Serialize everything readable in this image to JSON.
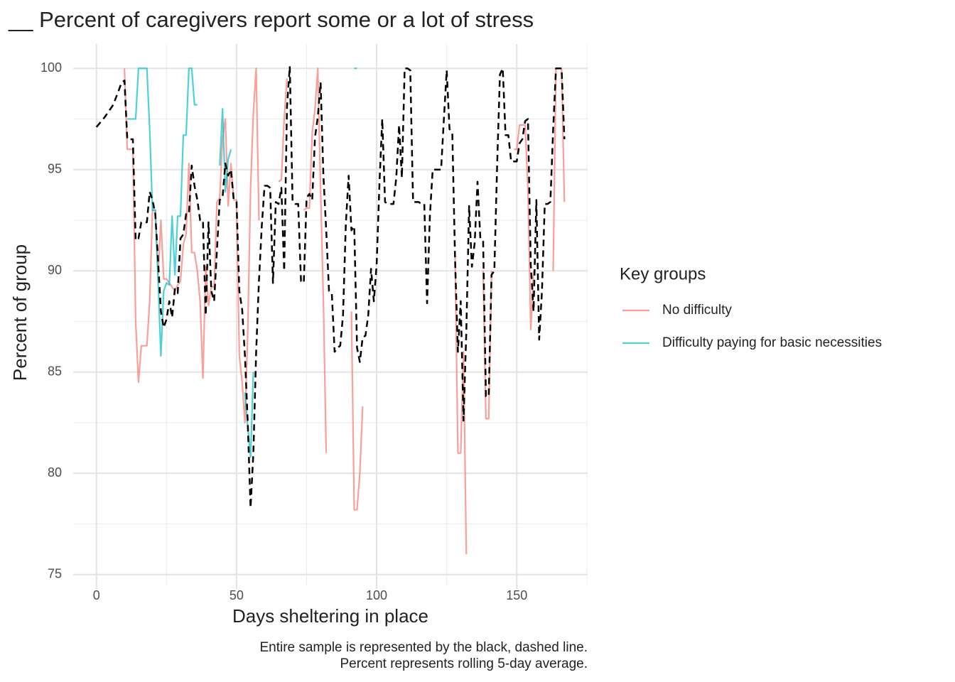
{
  "chart_data": {
    "type": "line",
    "title": "__ Percent of caregivers report some or a lot of stress",
    "x_label": "Days sheltering in place",
    "y_label": "Percent of group",
    "legend_title": "Key groups",
    "legend_position": "right",
    "caption": [
      "Entire sample is represented by the black, dashed line.",
      "Percent represents rolling 5-day average."
    ],
    "xlim": [
      -8.3,
      175.3
    ],
    "xticks": [
      0,
      50,
      100,
      150
    ],
    "ylim": [
      74.5,
      101.2
    ],
    "yticks": [
      75,
      80,
      85,
      90,
      95,
      100
    ],
    "grid": true,
    "series": [
      {
        "name": "No difficulty",
        "color": "#F8766D",
        "x": [
          10,
          11,
          13,
          14,
          15,
          16,
          18,
          19,
          20,
          21,
          22,
          23,
          24,
          25,
          26,
          27,
          28,
          29,
          30,
          31,
          32,
          33,
          34,
          35,
          36,
          37,
          38,
          39,
          40,
          41,
          42,
          43,
          44,
          45,
          46,
          47,
          48,
          49,
          50,
          51,
          52,
          53,
          54,
          55,
          56,
          57,
          58,
          64,
          65,
          66,
          67,
          68,
          69,
          73,
          74,
          75,
          76,
          77,
          78,
          79,
          80,
          81,
          82,
          90,
          91,
          92,
          93,
          94,
          95,
          127,
          128,
          129,
          130,
          131,
          132,
          137,
          138,
          139,
          140,
          141,
          148,
          149,
          150,
          151,
          152,
          153,
          154,
          155,
          156,
          162,
          163,
          164,
          165,
          166,
          167
        ],
        "values": [
          100,
          96,
          96,
          87.5,
          84.5,
          86.3,
          86.3,
          88.5,
          93,
          93,
          89.8,
          92.5,
          89.6,
          89.6,
          89.4,
          89.2,
          89,
          89.3,
          89.5,
          91.3,
          91.8,
          95.3,
          90.9,
          90.9,
          90,
          88.5,
          84.7,
          90.2,
          88.3,
          89.2,
          89.2,
          93.4,
          93.6,
          96.5,
          97.5,
          93.2,
          95.3,
          93.5,
          93.5,
          85.8,
          84.5,
          82.5,
          87,
          94,
          97.8,
          100,
          92.5,
          null,
          94.4,
          94.5,
          97.5,
          99.5,
          null,
          null,
          93,
          93.1,
          93.1,
          96.8,
          98,
          100,
          94,
          88.5,
          81,
          null,
          88,
          78.2,
          78.2,
          80,
          83.3,
          null,
          90.7,
          81,
          81,
          86,
          76,
          null,
          90,
          82.7,
          82.7,
          90,
          null,
          96,
          96,
          97.2,
          97.2,
          97.2,
          94,
          87.1,
          90,
          null,
          90,
          100,
          100,
          100,
          93.4
        ]
      },
      {
        "name": "Difficulty paying for basic necessities",
        "color": "#00BFC4",
        "x": [
          11,
          13,
          14,
          15,
          16,
          18,
          19,
          20,
          21,
          22,
          23,
          24,
          25,
          26,
          27,
          28,
          29,
          30,
          31,
          32,
          33,
          34,
          35,
          36,
          37,
          44,
          45,
          46,
          47,
          48,
          49,
          53,
          54,
          55,
          56,
          91,
          92,
          93
        ],
        "values": [
          97.5,
          97.5,
          97.5,
          100,
          100,
          100,
          97,
          93,
          93,
          89.5,
          85.8,
          89,
          89.4,
          89.3,
          92.7,
          89.8,
          92.7,
          92.7,
          96.7,
          96.7,
          100,
          100,
          98.2,
          98.2,
          null,
          95.2,
          98,
          93.9,
          95.5,
          96,
          null,
          84,
          82.3,
          80.8,
          85,
          null,
          100,
          100
        ]
      },
      {
        "color": "#000000",
        "dashed": true,
        "x": [
          0,
          3,
          6,
          9,
          10,
          11,
          13,
          14,
          15,
          16,
          18,
          19,
          20,
          21,
          22,
          23,
          24,
          25,
          26,
          27,
          28,
          29,
          30,
          31,
          32,
          33,
          34,
          35,
          36,
          37,
          38,
          39,
          40,
          41,
          42,
          44,
          45,
          46,
          47,
          48,
          49,
          50,
          51,
          52,
          53,
          54,
          55,
          56,
          57,
          58,
          59,
          60,
          61,
          62,
          63,
          64,
          65,
          66,
          67,
          68,
          69,
          70,
          71,
          72,
          73,
          74,
          75,
          76,
          77,
          78,
          79,
          80,
          81,
          82,
          83,
          84,
          85,
          86,
          87,
          88,
          89,
          90,
          91,
          92,
          93,
          94,
          95,
          96,
          97,
          98,
          99,
          100,
          101,
          102,
          103,
          104,
          105,
          106,
          107,
          108,
          109,
          110,
          111,
          112,
          113,
          114,
          115,
          116,
          117,
          118,
          119,
          120,
          121,
          122,
          123,
          124,
          125,
          126,
          127,
          128,
          129,
          130,
          131,
          132,
          133,
          134,
          135,
          136,
          137,
          138,
          139,
          140,
          141,
          142,
          143,
          144,
          145,
          146,
          147,
          148,
          149,
          150,
          151,
          152,
          153,
          154,
          155,
          156,
          157,
          158,
          159,
          160,
          161,
          162,
          163,
          164,
          165,
          166,
          167
        ],
        "values": [
          97.1,
          97.6,
          98.2,
          99.3,
          99.4,
          96.5,
          96.5,
          91.5,
          91.6,
          92.4,
          92.4,
          93.9,
          93.5,
          92.8,
          90.5,
          88,
          87.2,
          87.6,
          88.5,
          87.7,
          89.1,
          88.9,
          91.6,
          91.8,
          92.8,
          92.8,
          95.2,
          94.2,
          93.5,
          92.5,
          92.5,
          87.8,
          92.4,
          89,
          88.5,
          93.5,
          93.6,
          95.3,
          94.7,
          95,
          93.5,
          93.4,
          89,
          88.1,
          85.8,
          82.5,
          78.3,
          81,
          86,
          89.5,
          92.2,
          94.2,
          94.2,
          94.1,
          89.4,
          93.4,
          93.3,
          94.1,
          90,
          98.1,
          100.1,
          93.4,
          93.3,
          93.3,
          89.5,
          89.4,
          93.6,
          93.8,
          93.5,
          96.6,
          97.6,
          99.3,
          94.7,
          92,
          89,
          88.9,
          86,
          86.2,
          86.3,
          87.8,
          92.3,
          94.7,
          92,
          92.2,
          86.2,
          85.5,
          86.7,
          86.8,
          87.8,
          90.1,
          88.5,
          90.3,
          94.3,
          97.5,
          93.4,
          93.3,
          93.3,
          93.3,
          94.6,
          97.2,
          94.6,
          100,
          100,
          99.9,
          93.4,
          93.4,
          93.4,
          93.3,
          93.3,
          88.4,
          92.7,
          95,
          95,
          95,
          95,
          97.5,
          99.9,
          97,
          96.8,
          90.5,
          86,
          88.5,
          82.6,
          87,
          93.2,
          90.2,
          91.4,
          94.4,
          91.6,
          91.5,
          83.8,
          83.8,
          89.8,
          90,
          95.2,
          99.7,
          100,
          96.7,
          96.7,
          95.4,
          95.4,
          95.4,
          96.3,
          96.5,
          97.4,
          97.5,
          90.3,
          88,
          93.5,
          86.6,
          89,
          93.3,
          93.3,
          93.4,
          97,
          100,
          100,
          100,
          96.5
        ]
      }
    ]
  }
}
